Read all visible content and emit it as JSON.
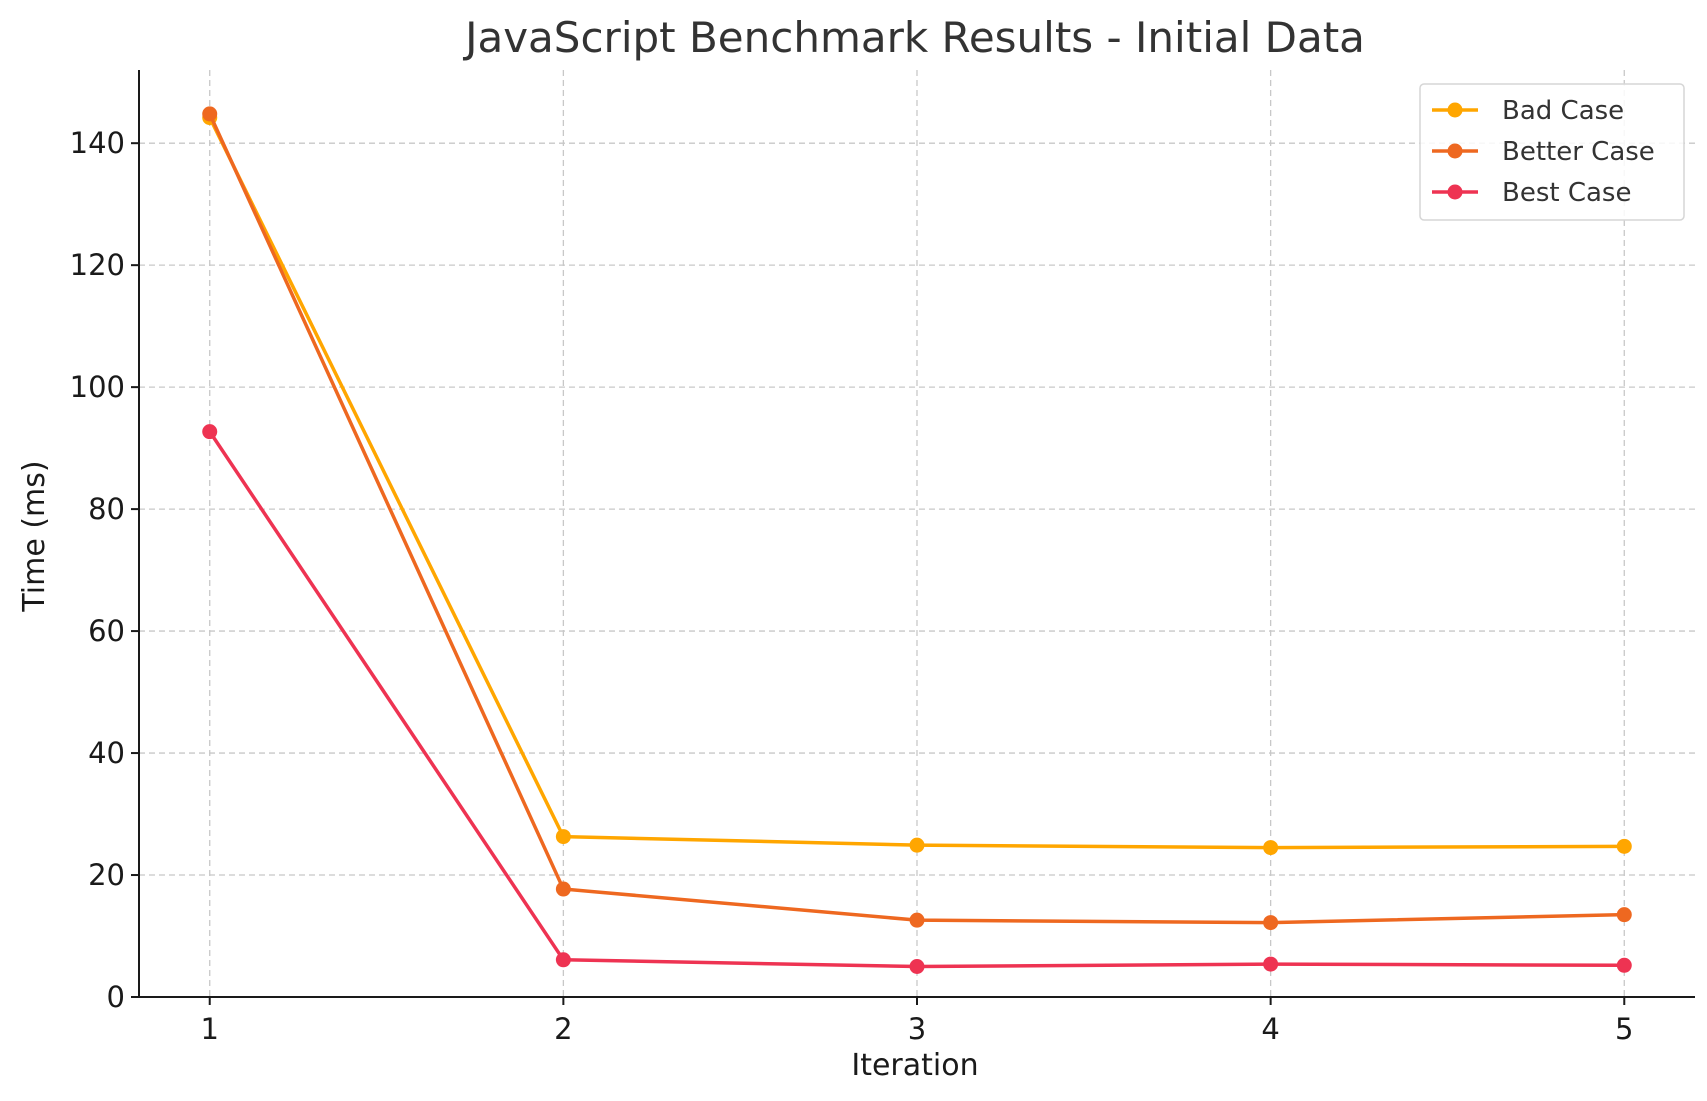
{
  "chart_data": {
    "type": "line",
    "title": "JavaScript Benchmark Results - Initial Data",
    "xlabel": "Iteration",
    "ylabel": "Time (ms)",
    "x": [
      1,
      2,
      3,
      4,
      5
    ],
    "xticks": [
      "1",
      "2",
      "3",
      "4",
      "5"
    ],
    "xlim": [
      0.8,
      5.2
    ],
    "ylim": [
      0,
      152
    ],
    "yticks": [
      0,
      20,
      40,
      60,
      80,
      100,
      120,
      140
    ],
    "grid": true,
    "legend_position": "top-right",
    "series": [
      {
        "name": "Bad Case",
        "color": "#ffa600",
        "values": [
          144.2,
          26.3,
          24.9,
          24.5,
          24.7
        ]
      },
      {
        "name": "Better Case",
        "color": "#ee6820",
        "values": [
          144.8,
          17.7,
          12.6,
          12.2,
          13.5
        ]
      },
      {
        "name": "Best Case",
        "color": "#ee3352",
        "values": [
          92.7,
          6.1,
          5.0,
          5.4,
          5.2
        ]
      }
    ]
  }
}
